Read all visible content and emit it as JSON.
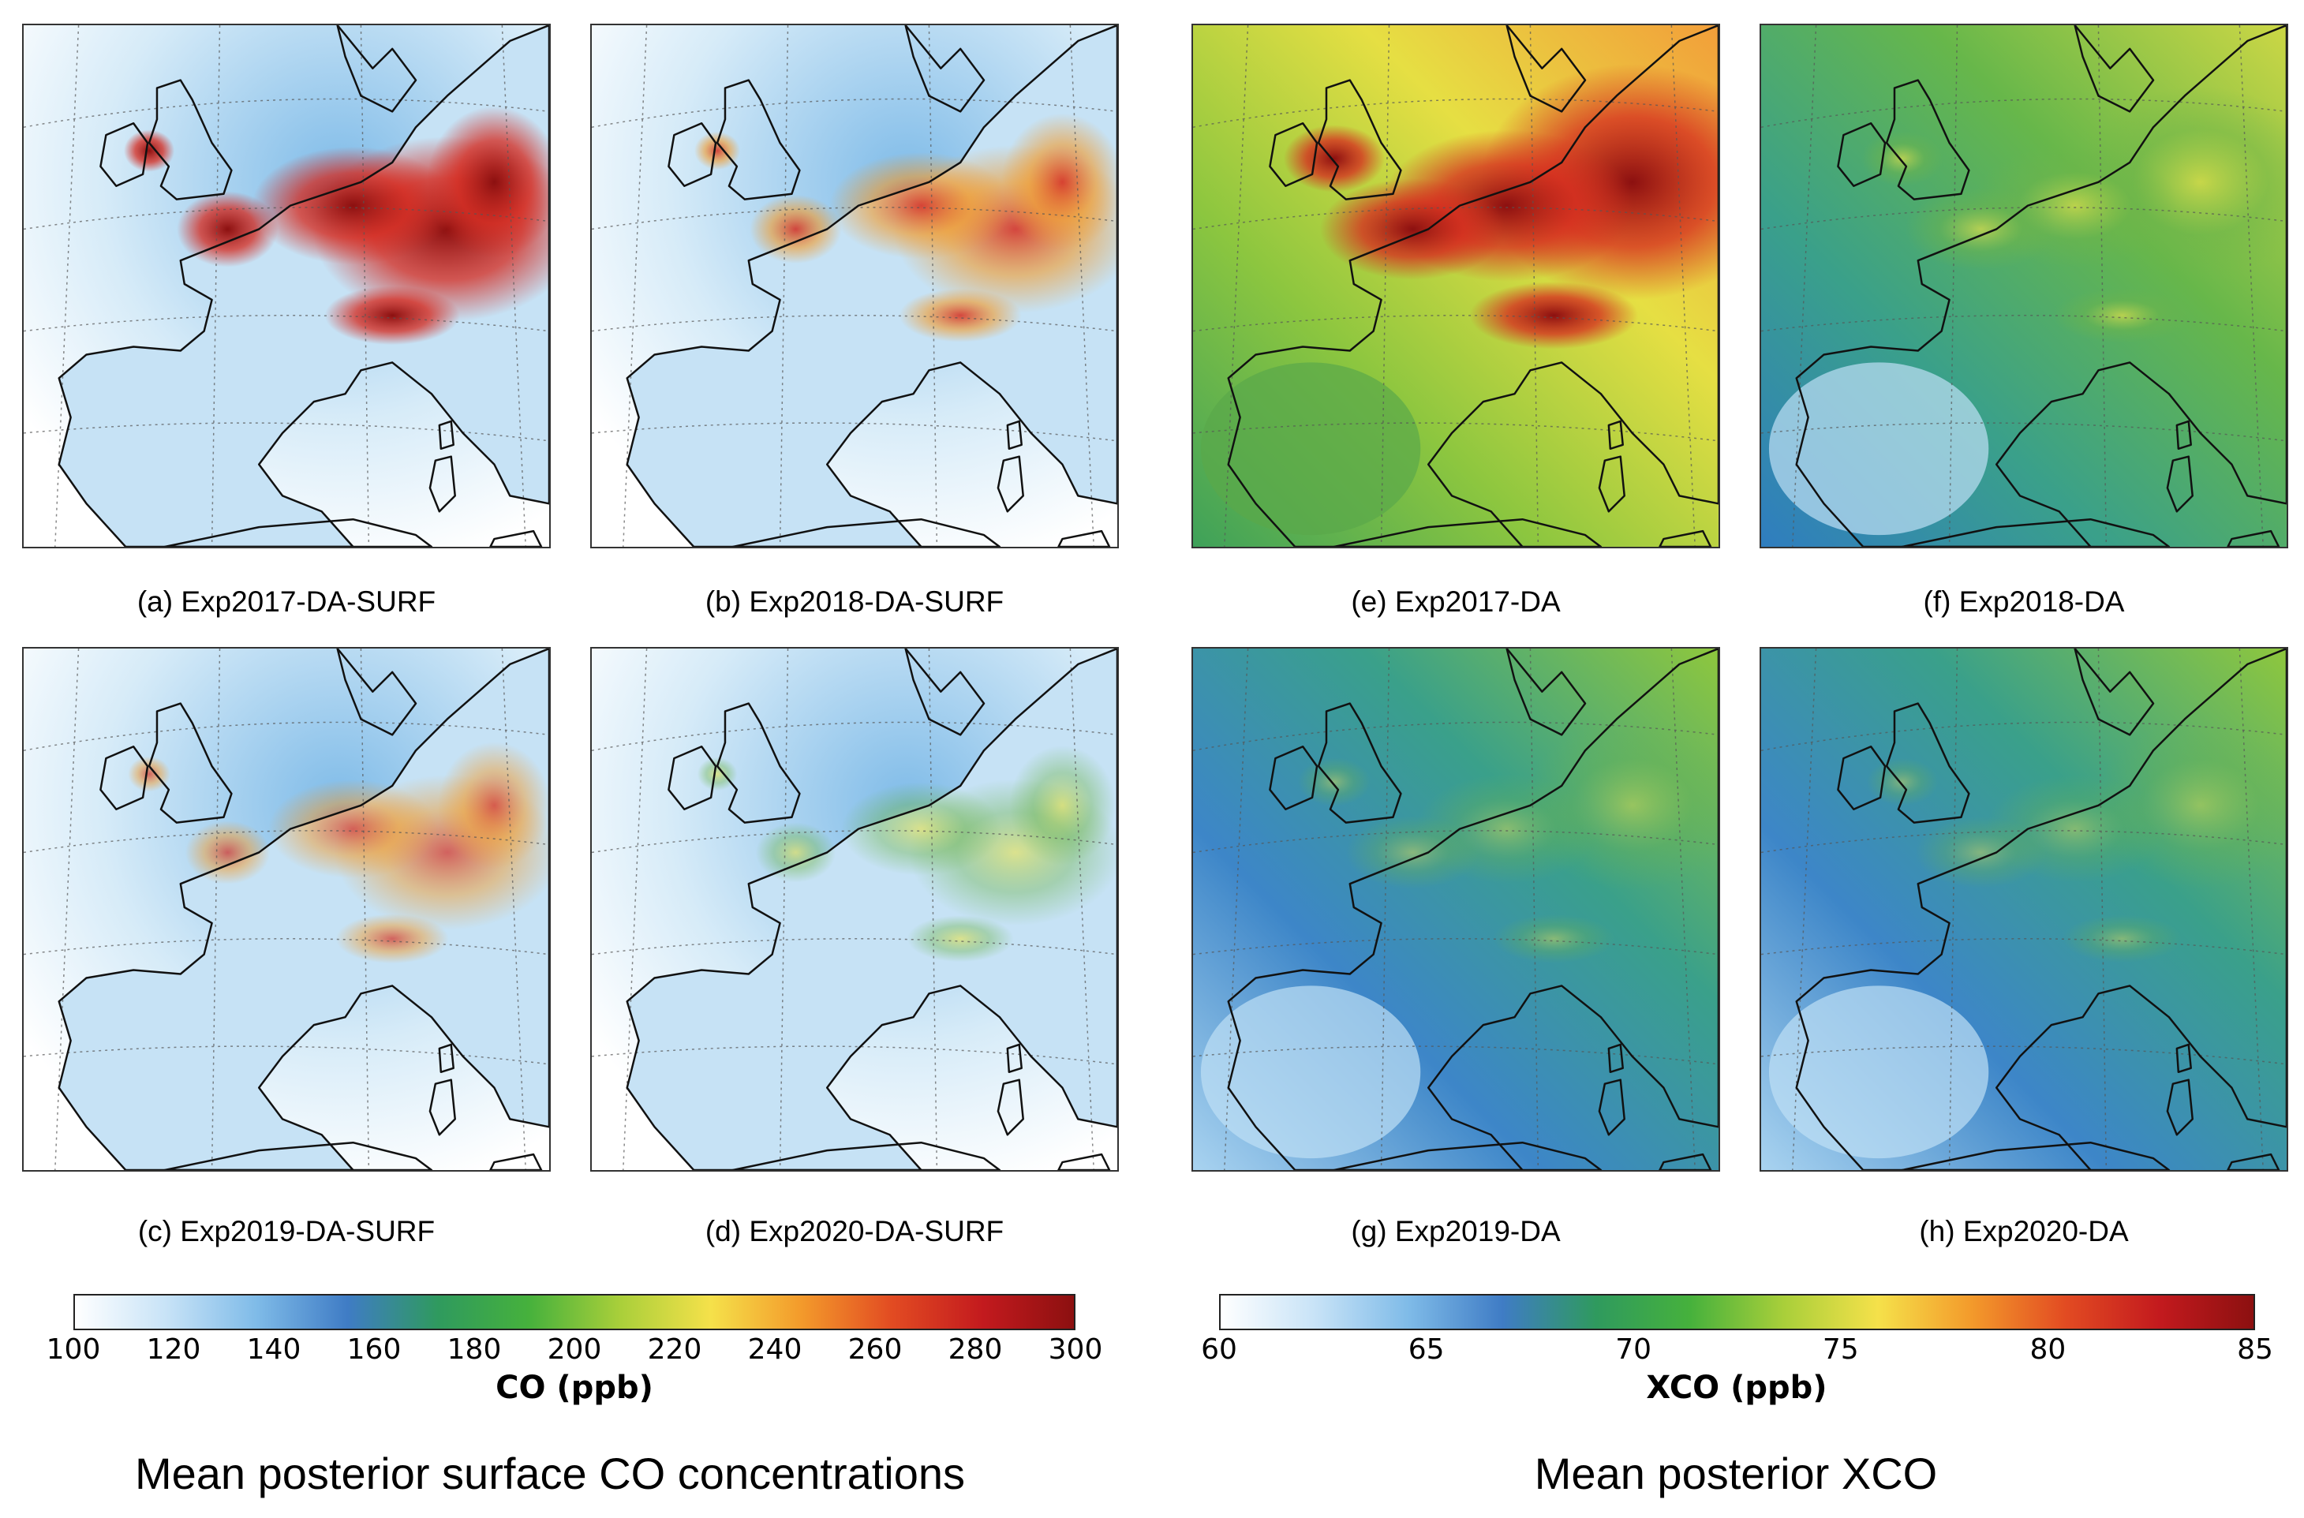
{
  "panels": [
    {
      "id": "a",
      "caption": "(a) Exp2017-DA-SURF",
      "scheme": "surf",
      "level": 0.95
    },
    {
      "id": "b",
      "caption": "(b) Exp2018-DA-SURF",
      "scheme": "surf",
      "level": 0.75
    },
    {
      "id": "c",
      "caption": "(c) Exp2019-DA-SURF",
      "scheme": "surf",
      "level": 0.6
    },
    {
      "id": "d",
      "caption": "(d) Exp2020-DA-SURF",
      "scheme": "surf",
      "level": 0.5
    },
    {
      "id": "e",
      "caption": "(e) Exp2017-DA",
      "scheme": "xco",
      "level": 0.95
    },
    {
      "id": "f",
      "caption": "(f) Exp2018-DA",
      "scheme": "xco",
      "level": 0.55
    },
    {
      "id": "g",
      "caption": "(g) Exp2019-DA",
      "scheme": "xco",
      "level": 0.35
    },
    {
      "id": "h",
      "caption": "(h) Exp2020-DA",
      "scheme": "xco",
      "level": 0.32
    }
  ],
  "colorbars": {
    "surf": {
      "title": "CO (ppb)",
      "ticks": [
        "100",
        "120",
        "140",
        "160",
        "180",
        "200",
        "220",
        "240",
        "260",
        "280",
        "300"
      ],
      "colors": [
        "#ffffff",
        "#c8e3f7",
        "#7fbbe8",
        "#3f7cc5",
        "#2f9a5e",
        "#46b13c",
        "#a9cf3a",
        "#f5e14a",
        "#f39a2b",
        "#e24b22",
        "#c31a1e",
        "#8c1010"
      ]
    },
    "xco": {
      "title": "XCO (ppb)",
      "ticks": [
        "60",
        "65",
        "70",
        "75",
        "80",
        "85"
      ],
      "colors": [
        "#ffffff",
        "#c8e3f7",
        "#7fbbe8",
        "#3f7cc5",
        "#2f9a5e",
        "#46b13c",
        "#a9cf3a",
        "#f5e14a",
        "#f39a2b",
        "#e24b22",
        "#c31a1e",
        "#8c1010"
      ]
    }
  },
  "section_titles": {
    "left": "Mean posterior surface CO concentrations",
    "right": "Mean posterior XCO"
  }
}
